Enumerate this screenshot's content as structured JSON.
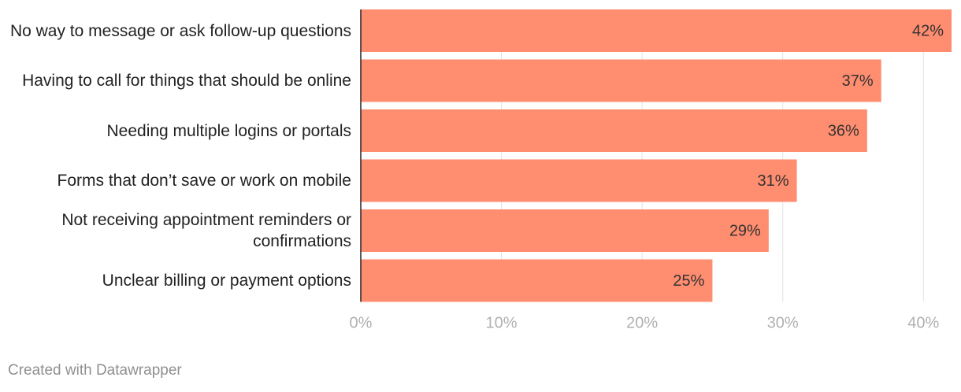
{
  "chart_data": {
    "type": "bar",
    "orientation": "horizontal",
    "categories": [
      "No way to message or ask follow-up questions",
      "Having to call for things that should be online",
      "Needing multiple logins or portals",
      "Forms that don’t save or work on mobile",
      "Not receiving appointment reminders or confirmations",
      "Unclear billing or payment options"
    ],
    "values": [
      42,
      37,
      36,
      31,
      29,
      25
    ],
    "value_labels": [
      "42%",
      "37%",
      "36%",
      "31%",
      "29%",
      "25%"
    ],
    "color": "#ff8d6f",
    "xlim": [
      0,
      42
    ],
    "xticks": [
      {
        "value": 0,
        "label": "0%"
      },
      {
        "value": 10,
        "label": "10%"
      },
      {
        "value": 20,
        "label": "20%"
      },
      {
        "value": 30,
        "label": "30%"
      },
      {
        "value": 40,
        "label": "40%"
      }
    ],
    "grid": true,
    "footer": "Created with Datawrapper"
  }
}
